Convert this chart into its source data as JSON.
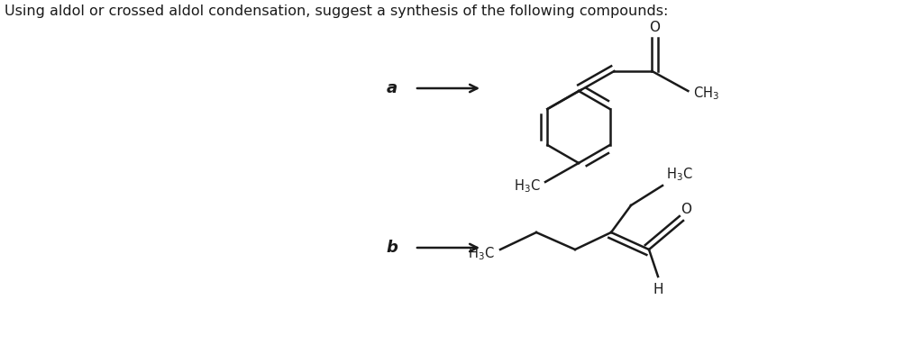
{
  "title_text": "Using aldol or crossed aldol condensation, suggest a synthesis of the following compounds:",
  "background": "#ffffff",
  "text_color": "#1a1a1a",
  "bond_color": "#1a1a1a",
  "bond_lw": 1.8,
  "label_a": "a",
  "label_b": "b",
  "label_fontsize": 13,
  "title_fontsize": 11.5,
  "chem_fontsize": 10.5
}
